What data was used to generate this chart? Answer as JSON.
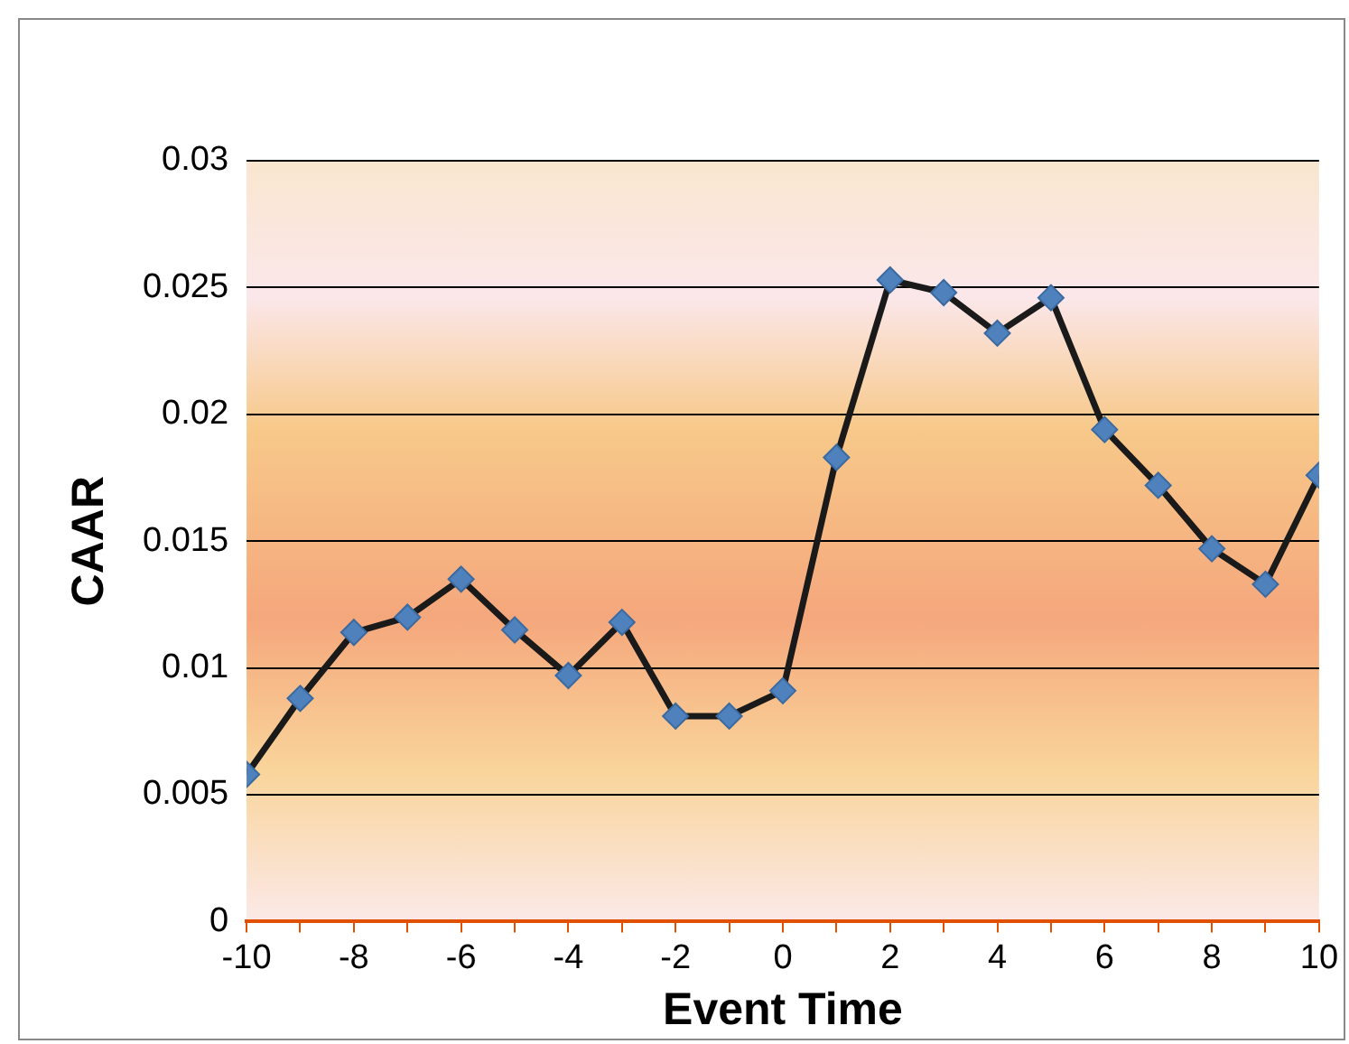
{
  "chart_data": {
    "type": "line",
    "xlabel": "Event Time",
    "ylabel": "CAAR",
    "x": [
      -10,
      -9,
      -8,
      -7,
      -6,
      -5,
      -4,
      -3,
      -2,
      -1,
      0,
      1,
      2,
      3,
      4,
      5,
      6,
      7,
      8,
      9,
      10
    ],
    "series": [
      {
        "color": "#1a1a1a",
        "values": [
          0.0058,
          0.0088,
          0.0114,
          0.012,
          0.0135,
          0.0115,
          0.0097,
          0.0118,
          0.0081,
          0.0081,
          0.0091,
          0.0183,
          0.0253,
          0.0248,
          0.0232,
          0.0246,
          0.0194,
          0.0172,
          0.0147,
          0.0133,
          0.0176
        ]
      }
    ],
    "marker": "diamond",
    "line_style": "solid",
    "grid": "y",
    "legend": false,
    "xlim": [
      -10,
      10
    ],
    "xticks": [
      -10,
      {
        "value": -9,
        "label": null
      },
      -8,
      {
        "value": -7,
        "label": null
      },
      -6,
      {
        "value": -5,
        "label": null
      },
      -4,
      {
        "value": -3,
        "label": null
      },
      -2,
      {
        "value": -1,
        "label": null
      },
      0,
      {
        "value": 1,
        "label": null
      },
      2,
      {
        "value": 3,
        "label": null
      },
      4,
      {
        "value": 5,
        "label": null
      },
      6,
      {
        "value": 7,
        "label": null
      },
      8,
      {
        "value": 9,
        "label": null
      },
      10
    ],
    "ylim": [
      0,
      0.03
    ],
    "yticks": [
      0,
      0.005,
      0.01,
      0.015,
      0.02,
      0.025,
      0.03
    ]
  }
}
